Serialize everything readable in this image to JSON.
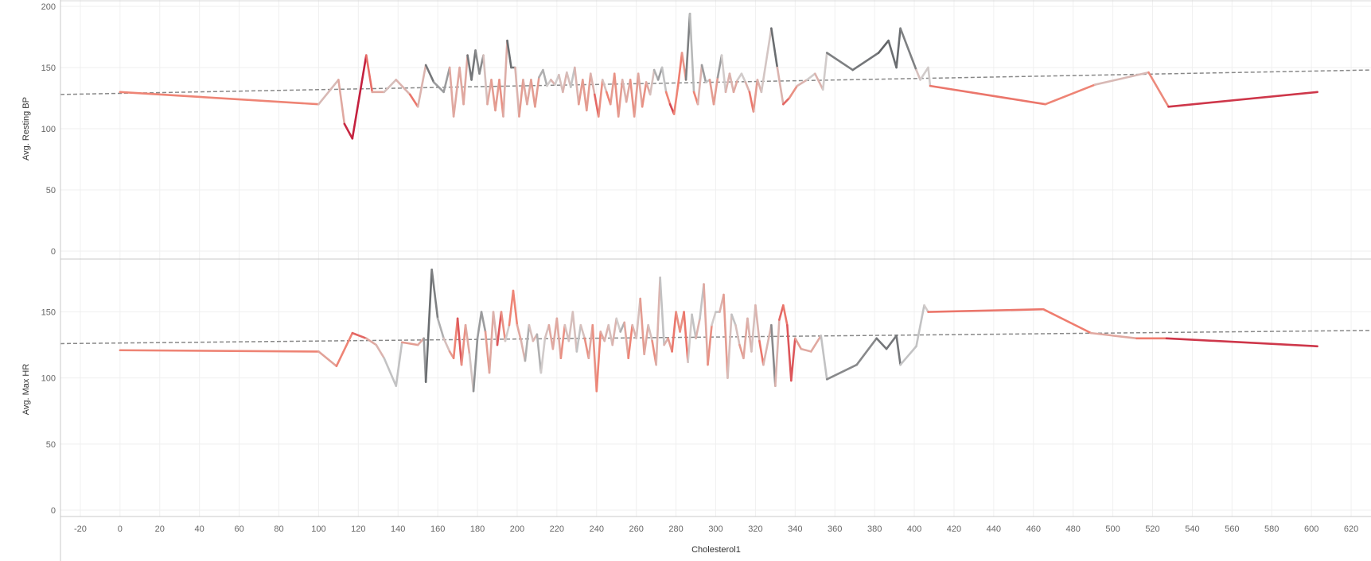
{
  "chart_data": {
    "type": "line",
    "xlabel": "Cholesterol1",
    "x_ticks": [
      -20,
      0,
      20,
      40,
      60,
      80,
      100,
      120,
      140,
      160,
      180,
      200,
      220,
      240,
      260,
      280,
      300,
      320,
      340,
      360,
      380,
      400,
      420,
      440,
      460,
      480,
      500,
      520,
      540,
      560,
      580,
      600,
      620
    ],
    "xlim": [
      -30,
      630
    ],
    "grid": true,
    "color_gradient": [
      "#4d5054",
      "#cfcfcf",
      "#f08070",
      "#c0183a"
    ],
    "trend_line_color": "#888888",
    "panes": [
      {
        "ylabel": "Avg. Resting BP",
        "y_ticks": [
          0,
          50,
          100,
          150,
          200
        ],
        "ylim": [
          0,
          200
        ],
        "trend": [
          [
            -30,
            128
          ],
          [
            630,
            148
          ]
        ],
        "points": [
          [
            0,
            130,
            0.55
          ],
          [
            100,
            120,
            0.75
          ],
          [
            110,
            140,
            0.1
          ],
          [
            113,
            104,
            0.9
          ],
          [
            117,
            92,
            1
          ],
          [
            124,
            160,
            0.95
          ],
          [
            127,
            130,
            0.5
          ],
          [
            133,
            130,
            0.5
          ],
          [
            139,
            140,
            0.3
          ],
          [
            146,
            128,
            0.6
          ],
          [
            150,
            118,
            0.8
          ],
          [
            154,
            152,
            0.1
          ],
          [
            158,
            138,
            0.1
          ],
          [
            163,
            130,
            0.3
          ],
          [
            166,
            150,
            0.1
          ],
          [
            168,
            110,
            0.9
          ],
          [
            171,
            150,
            0.1
          ],
          [
            173,
            120,
            0.9
          ],
          [
            175,
            160,
            0.1
          ],
          [
            177,
            140,
            0.1
          ],
          [
            179,
            164,
            0.1
          ],
          [
            181,
            145,
            0.2
          ],
          [
            183,
            160,
            0.1
          ],
          [
            185,
            120,
            0.7
          ],
          [
            187,
            140,
            0.3
          ],
          [
            189,
            115,
            0.8
          ],
          [
            191,
            140,
            0.3
          ],
          [
            193,
            110,
            0.9
          ],
          [
            195,
            172,
            0.05
          ],
          [
            197,
            150,
            0.1
          ],
          [
            199,
            150,
            0.1
          ],
          [
            201,
            110,
            0.8
          ],
          [
            203,
            140,
            0.3
          ],
          [
            205,
            120,
            0.7
          ],
          [
            207,
            140,
            0.3
          ],
          [
            209,
            118,
            0.8
          ],
          [
            211,
            142,
            0.3
          ],
          [
            213,
            148,
            0.2
          ],
          [
            215,
            135,
            0.3
          ],
          [
            217,
            140,
            0.4
          ],
          [
            219,
            136,
            0.5
          ],
          [
            221,
            144,
            0.2
          ],
          [
            223,
            130,
            0.6
          ],
          [
            225,
            146,
            0.3
          ],
          [
            227,
            134,
            0.5
          ],
          [
            229,
            150,
            0.1
          ],
          [
            231,
            120,
            0.8
          ],
          [
            233,
            140,
            0.3
          ],
          [
            235,
            115,
            0.8
          ],
          [
            237,
            145,
            0.3
          ],
          [
            239,
            128,
            0.6
          ],
          [
            241,
            110,
            0.9
          ],
          [
            243,
            140,
            0.3
          ],
          [
            245,
            130,
            0.5
          ],
          [
            247,
            120,
            0.8
          ],
          [
            249,
            145,
            0.3
          ],
          [
            251,
            110,
            0.9
          ],
          [
            253,
            140,
            0.2
          ],
          [
            255,
            122,
            0.7
          ],
          [
            257,
            140,
            0.3
          ],
          [
            259,
            110,
            0.9
          ],
          [
            261,
            145,
            0.2
          ],
          [
            263,
            118,
            0.8
          ],
          [
            265,
            138,
            0.4
          ],
          [
            267,
            128,
            0.6
          ],
          [
            269,
            148,
            0.2
          ],
          [
            271,
            140,
            0.3
          ],
          [
            273,
            150,
            0.1
          ],
          [
            275,
            130,
            0.5
          ],
          [
            277,
            120,
            0.8
          ],
          [
            279,
            112,
            0.9
          ],
          [
            281,
            135,
            0.4
          ],
          [
            283,
            162,
            0.95
          ],
          [
            285,
            140,
            0.2
          ],
          [
            287,
            194,
            0.05
          ],
          [
            289,
            130,
            0.5
          ],
          [
            291,
            120,
            0.8
          ],
          [
            293,
            152,
            0.1
          ],
          [
            295,
            138,
            0.3
          ],
          [
            297,
            140,
            0.3
          ],
          [
            299,
            120,
            0.8
          ],
          [
            301,
            142,
            0.3
          ],
          [
            303,
            160,
            0.1
          ],
          [
            305,
            130,
            0.6
          ],
          [
            307,
            145,
            0.3
          ],
          [
            309,
            130,
            0.6
          ],
          [
            311,
            140,
            0.4
          ],
          [
            313,
            145,
            0.3
          ],
          [
            315,
            138,
            0.4
          ],
          [
            317,
            130,
            0.5
          ],
          [
            319,
            114,
            0.9
          ],
          [
            321,
            140,
            0.2
          ],
          [
            323,
            130,
            0.7
          ],
          [
            328,
            182,
            0.05
          ],
          [
            331,
            150,
            0.1
          ],
          [
            334,
            120,
            0.8
          ],
          [
            337,
            125,
            0.7
          ],
          [
            341,
            135,
            0.5
          ],
          [
            346,
            140,
            0.4
          ],
          [
            350,
            145,
            0.3
          ],
          [
            354,
            132,
            0.6
          ],
          [
            356,
            162,
            0.1
          ],
          [
            369,
            148,
            0.15
          ],
          [
            382,
            162,
            0.05
          ],
          [
            387,
            172,
            0.05
          ],
          [
            391,
            150,
            0.1
          ],
          [
            393,
            182,
            0.05
          ],
          [
            401,
            148,
            0.2
          ],
          [
            403,
            140,
            0.6
          ],
          [
            407,
            150,
            0.1
          ],
          [
            408,
            135,
            0.6
          ],
          [
            466,
            120,
            0.8
          ],
          [
            491,
            136,
            0.5
          ],
          [
            518,
            146,
            0.35
          ],
          [
            528,
            118,
            0.9
          ],
          [
            603,
            130,
            0.9
          ]
        ]
      },
      {
        "ylabel": "Avg. Max HR",
        "y_ticks": [
          0,
          50,
          100,
          150
        ],
        "ylim": [
          0,
          190
        ],
        "trend": [
          [
            -30,
            126
          ],
          [
            630,
            136
          ]
        ],
        "points": [
          [
            0,
            121,
            0.55
          ],
          [
            100,
            120,
            0.75
          ],
          [
            109,
            109,
            0.3
          ],
          [
            117,
            134,
            1
          ],
          [
            124,
            130,
            0.5
          ],
          [
            129,
            125,
            0.5
          ],
          [
            133,
            115,
            0.4
          ],
          [
            139,
            94,
            0.2
          ],
          [
            142,
            127,
            0.4
          ],
          [
            150,
            125,
            0.7
          ],
          [
            153,
            130,
            0.3
          ],
          [
            154,
            97,
            0.1
          ],
          [
            157,
            182,
            0.05
          ],
          [
            160,
            145,
            0.2
          ],
          [
            163,
            130,
            0.3
          ],
          [
            166,
            120,
            0.5
          ],
          [
            168,
            115,
            0.6
          ],
          [
            170,
            145,
            0.7
          ],
          [
            172,
            110,
            0.9
          ],
          [
            174,
            140,
            0.3
          ],
          [
            176,
            118,
            0.7
          ],
          [
            178,
            90,
            0.05
          ],
          [
            180,
            130,
            0.3
          ],
          [
            182,
            150,
            0.1
          ],
          [
            184,
            135,
            0.3
          ],
          [
            186,
            104,
            0.8
          ],
          [
            188,
            150,
            0.2
          ],
          [
            190,
            125,
            0.7
          ],
          [
            192,
            150,
            0.9
          ],
          [
            194,
            128,
            0.3
          ],
          [
            196,
            140,
            0.4
          ],
          [
            198,
            166,
            0.9
          ],
          [
            200,
            140,
            0.4
          ],
          [
            202,
            128,
            0.6
          ],
          [
            204,
            113,
            0.3
          ],
          [
            206,
            140,
            0.2
          ],
          [
            208,
            128,
            0.6
          ],
          [
            210,
            133,
            0.3
          ],
          [
            212,
            104,
            0.2
          ],
          [
            214,
            130,
            0.5
          ],
          [
            216,
            140,
            0.3
          ],
          [
            218,
            122,
            0.7
          ],
          [
            220,
            145,
            0.3
          ],
          [
            222,
            115,
            0.7
          ],
          [
            224,
            140,
            0.5
          ],
          [
            226,
            128,
            0.3
          ],
          [
            228,
            150,
            0.5
          ],
          [
            230,
            120,
            0.3
          ],
          [
            232,
            140,
            0.3
          ],
          [
            234,
            130,
            0.5
          ],
          [
            236,
            115,
            0.7
          ],
          [
            238,
            140,
            0.3
          ],
          [
            240,
            90,
            0.9
          ],
          [
            242,
            135,
            0.4
          ],
          [
            244,
            128,
            0.6
          ],
          [
            246,
            140,
            0.3
          ],
          [
            248,
            125,
            0.5
          ],
          [
            250,
            145,
            0.4
          ],
          [
            252,
            135,
            0.3
          ],
          [
            254,
            142,
            0.2
          ],
          [
            256,
            115,
            0.8
          ],
          [
            258,
            140,
            0.5
          ],
          [
            260,
            130,
            0.4
          ],
          [
            262,
            160,
            0.4
          ],
          [
            264,
            118,
            0.7
          ],
          [
            266,
            140,
            0.3
          ],
          [
            268,
            128,
            0.5
          ],
          [
            270,
            110,
            0.7
          ],
          [
            272,
            176,
            0.2
          ],
          [
            274,
            125,
            0.4
          ],
          [
            276,
            130,
            0.5
          ],
          [
            278,
            120,
            0.6
          ],
          [
            280,
            150,
            0.8
          ],
          [
            282,
            135,
            0.4
          ],
          [
            284,
            150,
            0.8
          ],
          [
            286,
            112,
            0.6
          ],
          [
            288,
            148,
            0.1
          ],
          [
            290,
            130,
            0.5
          ],
          [
            292,
            145,
            0.4
          ],
          [
            294,
            171,
            0.2
          ],
          [
            296,
            110,
            0.8
          ],
          [
            298,
            140,
            0.4
          ],
          [
            300,
            150,
            0.3
          ],
          [
            302,
            150,
            0.3
          ],
          [
            304,
            163,
            0.6
          ],
          [
            306,
            100,
            0.5
          ],
          [
            308,
            148,
            0.3
          ],
          [
            310,
            140,
            0.3
          ],
          [
            312,
            125,
            0.5
          ],
          [
            314,
            115,
            0.6
          ],
          [
            316,
            145,
            0.4
          ],
          [
            318,
            120,
            0.5
          ],
          [
            320,
            155,
            0.3
          ],
          [
            322,
            128,
            0.6
          ],
          [
            324,
            110,
            0.8
          ],
          [
            328,
            140,
            0.1
          ],
          [
            330,
            94,
            0.2
          ],
          [
            332,
            144,
            0.7
          ],
          [
            334,
            155,
            0.8
          ],
          [
            336,
            140,
            0.6
          ],
          [
            338,
            98,
            1
          ],
          [
            340,
            130,
            0.6
          ],
          [
            343,
            122,
            0.5
          ],
          [
            348,
            120,
            0.5
          ],
          [
            353,
            132,
            0.5
          ],
          [
            356,
            99,
            0.1
          ],
          [
            371,
            110,
            0.2
          ],
          [
            381,
            130,
            0.1
          ],
          [
            386,
            122,
            0.1
          ],
          [
            391,
            132,
            0.1
          ],
          [
            393,
            110,
            0.1
          ],
          [
            401,
            124,
            0.5
          ],
          [
            405,
            155,
            0.1
          ],
          [
            407,
            150,
            0.6
          ],
          [
            465,
            152,
            0.8
          ],
          [
            489,
            134,
            0.55
          ],
          [
            512,
            130,
            0.45
          ],
          [
            527,
            130,
            0.9
          ],
          [
            603,
            124,
            0.9
          ]
        ]
      }
    ]
  }
}
